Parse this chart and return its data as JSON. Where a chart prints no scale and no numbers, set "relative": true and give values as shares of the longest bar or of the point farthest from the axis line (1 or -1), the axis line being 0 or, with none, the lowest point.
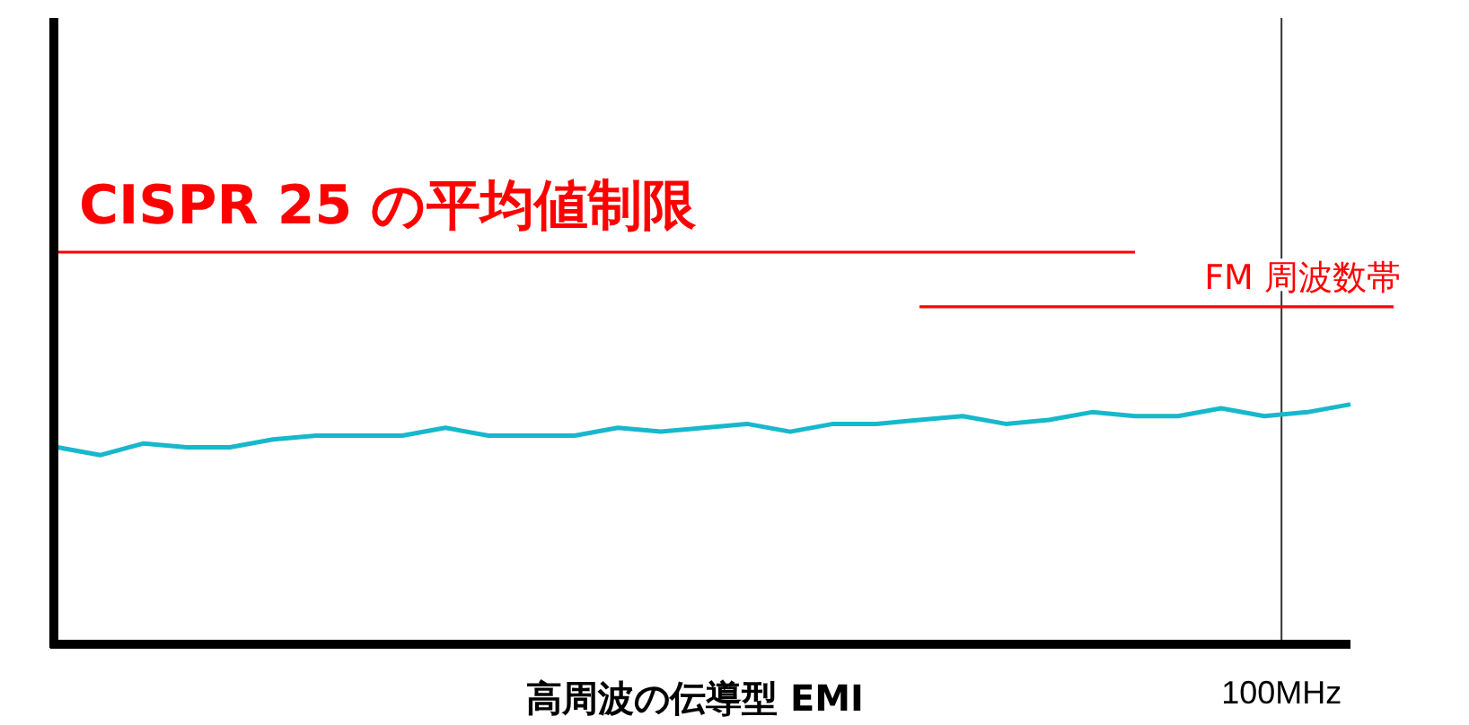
{
  "chart_data": {
    "type": "line",
    "relative": true,
    "xlabel": "高周波の伝導型 EMI",
    "categories": [
      null,
      null,
      null,
      null,
      null,
      null,
      null,
      null,
      null,
      null,
      null,
      null,
      null,
      null,
      null,
      null,
      null,
      null,
      null,
      null,
      null,
      null,
      null,
      null,
      null,
      null,
      null,
      null,
      null,
      null,
      null,
      null
    ],
    "series": [
      {
        "color": "#17b8cc",
        "values": [
          0.5,
          0.48,
          0.51,
          0.5,
          0.5,
          0.52,
          0.53,
          0.53,
          0.53,
          0.55,
          0.53,
          0.53,
          0.53,
          0.55,
          0.54,
          0.55,
          0.56,
          0.54,
          0.56,
          0.56,
          0.57,
          0.58,
          0.56,
          0.57,
          0.59,
          0.58,
          0.58,
          0.6,
          0.58,
          0.59,
          0.61,
          null
        ]
      },
      {
        "name": "CISPR 25 の平均値制限",
        "color": "#ff0000",
        "values": [
          1,
          1,
          1,
          1,
          1,
          1,
          1,
          1,
          1,
          1,
          1,
          1,
          1,
          1,
          1,
          1,
          1,
          1,
          1,
          1,
          1,
          1,
          1,
          1,
          1,
          1,
          null,
          null,
          null,
          null,
          null,
          null
        ]
      },
      {
        "name": "FM 周波数帯",
        "color": "#ff0000",
        "values": [
          null,
          null,
          null,
          null,
          null,
          null,
          null,
          null,
          null,
          null,
          null,
          null,
          null,
          null,
          null,
          null,
          null,
          null,
          null,
          null,
          0.86,
          0.86,
          0.86,
          0.86,
          0.86,
          0.86,
          0.86,
          0.86,
          0.86,
          0.86,
          0.86,
          0.86
        ]
      }
    ],
    "annotations": [
      "100MHz"
    ]
  }
}
